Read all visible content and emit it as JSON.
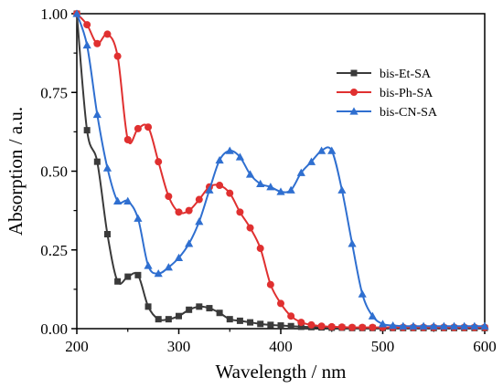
{
  "chart_data": {
    "type": "line",
    "xlabel": "Wavelength / nm",
    "ylabel": "Absorption / a.u.",
    "xlim": [
      200,
      600
    ],
    "ylim": [
      0,
      1.0
    ],
    "x_ticks": [
      "200",
      "300",
      "400",
      "500",
      "600"
    ],
    "y_ticks": [
      "0.00",
      "0.25",
      "0.50",
      "0.75",
      "1.00"
    ],
    "x_tick_values": [
      200,
      300,
      400,
      500,
      600
    ],
    "y_tick_values": [
      0,
      0.25,
      0.5,
      0.75,
      1.0
    ],
    "grid": false,
    "legend_position": "top-right",
    "series": [
      {
        "name": "bis-Et-SA",
        "color": "#3a3a3a",
        "marker": "square",
        "x": [
          200,
          210,
          220,
          230,
          240,
          250,
          260,
          270,
          280,
          290,
          300,
          310,
          320,
          330,
          340,
          350,
          360,
          370,
          380,
          390,
          400,
          410,
          420,
          430,
          440,
          450,
          460,
          470,
          480,
          490,
          500,
          510,
          520,
          530,
          540,
          550,
          560,
          570,
          580,
          590,
          600
        ],
        "y": [
          1.0,
          0.63,
          0.53,
          0.3,
          0.15,
          0.165,
          0.17,
          0.07,
          0.03,
          0.03,
          0.04,
          0.06,
          0.07,
          0.065,
          0.05,
          0.03,
          0.025,
          0.02,
          0.015,
          0.012,
          0.01,
          0.008,
          0.006,
          0.005,
          0.004,
          0.003,
          0.003,
          0.002,
          0.002,
          0.002,
          0.002,
          0.002,
          0.002,
          0.002,
          0.002,
          0.002,
          0.002,
          0.002,
          0.002,
          0.002,
          0.002
        ]
      },
      {
        "name": "bis-Ph-SA",
        "color": "#e03030",
        "marker": "circle",
        "x": [
          200,
          210,
          220,
          230,
          240,
          250,
          260,
          270,
          280,
          290,
          300,
          310,
          320,
          330,
          340,
          350,
          360,
          370,
          380,
          390,
          400,
          410,
          420,
          430,
          440,
          450,
          460,
          470,
          480,
          490,
          500,
          510,
          520,
          530,
          540,
          550,
          560,
          570,
          580,
          590,
          600
        ],
        "y": [
          1.0,
          0.965,
          0.905,
          0.935,
          0.865,
          0.6,
          0.635,
          0.64,
          0.53,
          0.42,
          0.37,
          0.375,
          0.41,
          0.45,
          0.455,
          0.43,
          0.37,
          0.32,
          0.255,
          0.14,
          0.08,
          0.04,
          0.02,
          0.012,
          0.008,
          0.006,
          0.005,
          0.004,
          0.004,
          0.004,
          0.004,
          0.004,
          0.004,
          0.004,
          0.004,
          0.004,
          0.004,
          0.004,
          0.004,
          0.004,
          0.004
        ]
      },
      {
        "name": "bis-CN-SA",
        "color": "#2f6fd0",
        "marker": "triangle",
        "x": [
          200,
          210,
          220,
          230,
          240,
          250,
          260,
          270,
          280,
          290,
          300,
          310,
          320,
          330,
          340,
          350,
          360,
          370,
          380,
          390,
          400,
          410,
          420,
          430,
          440,
          450,
          460,
          470,
          480,
          490,
          500,
          510,
          520,
          530,
          540,
          550,
          560,
          570,
          580,
          590,
          600
        ],
        "y": [
          1.0,
          0.9,
          0.68,
          0.51,
          0.405,
          0.405,
          0.35,
          0.2,
          0.175,
          0.195,
          0.225,
          0.27,
          0.34,
          0.44,
          0.535,
          0.565,
          0.545,
          0.49,
          0.46,
          0.45,
          0.435,
          0.44,
          0.495,
          0.53,
          0.565,
          0.565,
          0.44,
          0.27,
          0.11,
          0.04,
          0.015,
          0.01,
          0.008,
          0.008,
          0.008,
          0.008,
          0.008,
          0.008,
          0.008,
          0.008,
          0.008
        ]
      }
    ]
  }
}
